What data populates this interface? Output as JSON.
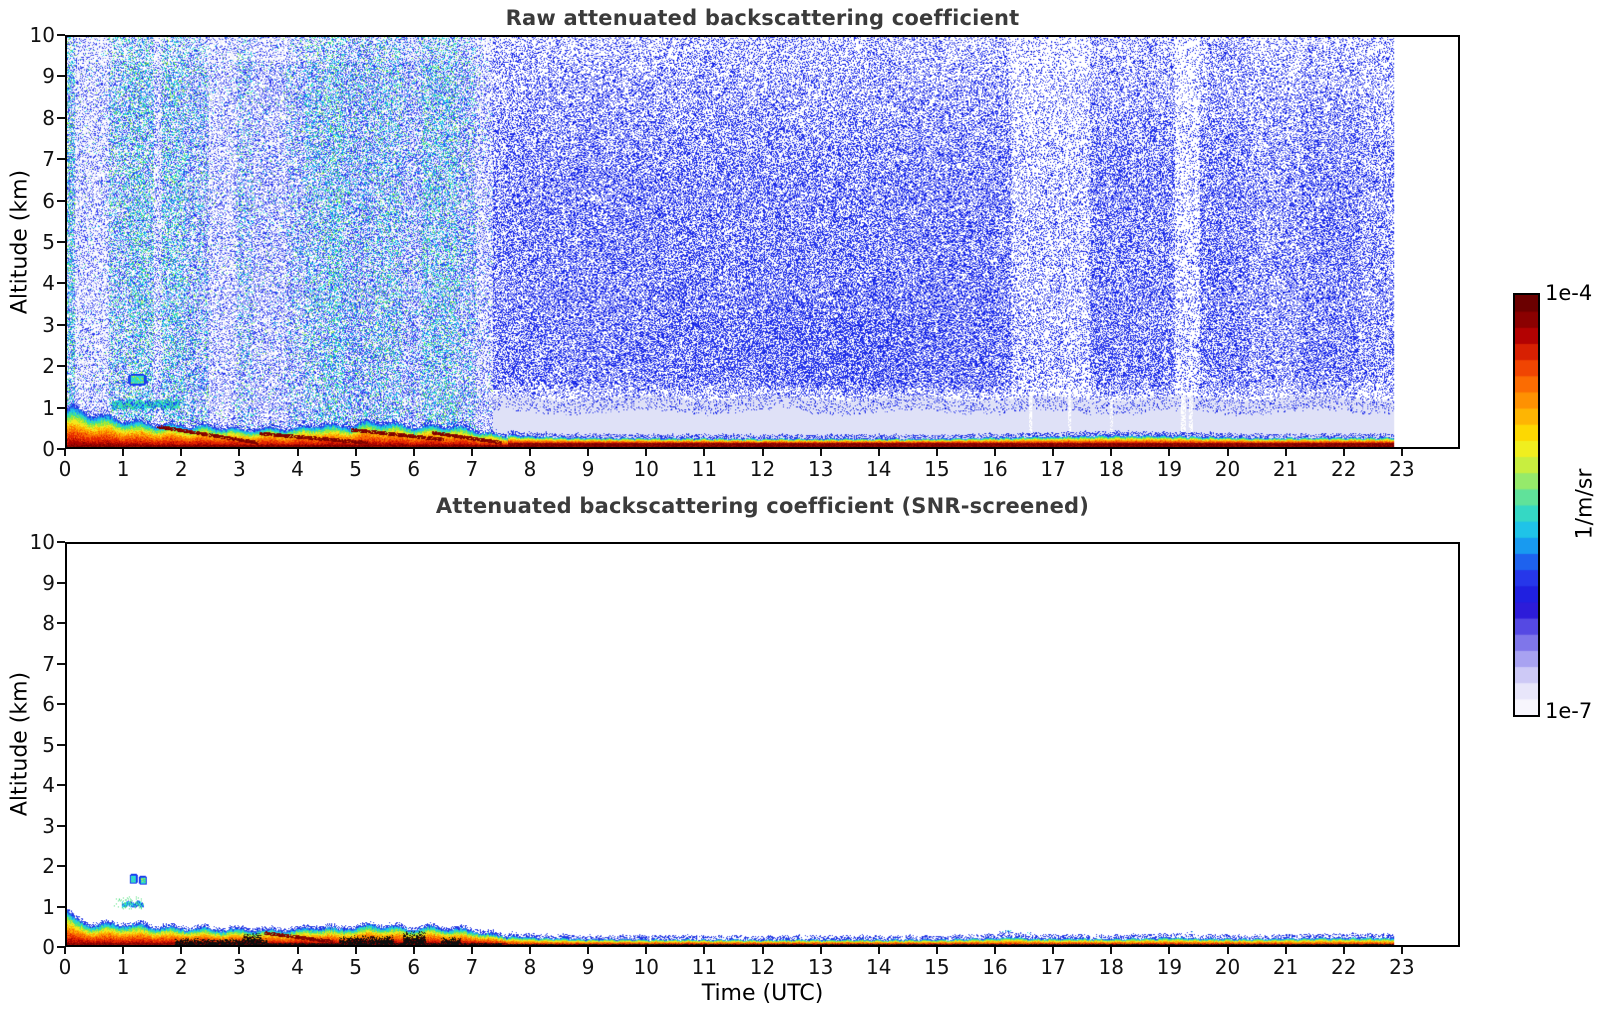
{
  "page": {
    "background": "#ffffff"
  },
  "titles": {
    "top_panel": "Raw attenuated backscattering coefficient",
    "bottom_panel": "Attenuated backscattering coefficient (SNR-screened)"
  },
  "axis": {
    "x_label": "Time (UTC)",
    "y_label": "Altitude (km)",
    "x_ticks": [
      0,
      1,
      2,
      3,
      4,
      5,
      6,
      7,
      8,
      9,
      10,
      11,
      12,
      13,
      14,
      15,
      16,
      17,
      18,
      19,
      20,
      21,
      22,
      23
    ],
    "y_ticks": [
      0,
      1,
      2,
      3,
      4,
      5,
      6,
      7,
      8,
      9,
      10
    ],
    "x_range": [
      0,
      24
    ],
    "y_range": [
      0,
      10
    ],
    "grid": false
  },
  "colorbar": {
    "label_top": "1e-4",
    "label_bottom": "1e-7",
    "unit_label": "1/m/sr",
    "stops_bottom_to_top": [
      "#f7f6fd",
      "#e8e6fa",
      "#cdc9f6",
      "#a8a2f1",
      "#7f76ea",
      "#5549e3",
      "#2d1cd9",
      "#2020e0",
      "#2637ea",
      "#1e62ee",
      "#189af0",
      "#1fc3e8",
      "#35d8c4",
      "#60e29a",
      "#95ea6b",
      "#c8ee3f",
      "#f0ee1f",
      "#fdd802",
      "#feb503",
      "#fe9102",
      "#fb6c02",
      "#f04502",
      "#d72002",
      "#b30202",
      "#8b0101",
      "#6b0000"
    ]
  },
  "render_palettes": {
    "morning_blue": [
      [
        "#2a38ee",
        5
      ],
      [
        "#5560f0",
        2
      ],
      [
        "#8b93f4",
        2
      ],
      [
        "#b9bdf8",
        1
      ]
    ],
    "morning_cyan": [
      [
        "#21d2e6",
        5
      ],
      [
        "#43e283",
        2
      ],
      [
        "#8ef03a",
        1.5
      ],
      [
        "#17b5ee",
        1.5
      ]
    ],
    "afternoon_blue": [
      [
        "#1d2ceb",
        6
      ],
      [
        "#3a49ee",
        2
      ],
      [
        "#0d1bd6",
        1.2
      ],
      [
        "#7b84f2",
        0.8
      ]
    ],
    "morning_bg": "#eceefb",
    "lavender": "#dfe1f7",
    "bl_palette": [
      [
        0,
        "#7c0000"
      ],
      [
        0.1,
        "#ad0400"
      ],
      [
        0.22,
        "#e42600"
      ],
      [
        0.38,
        "#f86a00"
      ],
      [
        0.52,
        "#fdaf00"
      ],
      [
        0.62,
        "#f3e71c"
      ],
      [
        0.72,
        "#9dea38"
      ],
      [
        0.8,
        "#3fdf95"
      ],
      [
        0.87,
        "#22cfe0"
      ],
      [
        0.93,
        "#1e8cee"
      ],
      [
        1,
        "#2337e6"
      ]
    ],
    "cloud": {
      "core": "#2bd7e2",
      "green": "#4ce07c",
      "rim": "#1c40ee",
      "yellow": "#d8ee2a"
    },
    "black": "#0d0d0d",
    "ground_dark": "#7c0000",
    "ground_dark2": "#9a0e00"
  },
  "chart_data": [
    {
      "type": "heatmap",
      "panel": "top",
      "title": "Raw attenuated backscattering coefficient",
      "xlabel": "Time (UTC)",
      "ylabel": "Altitude (km)",
      "x_range_hours": [
        0,
        24
      ],
      "y_range_km": [
        0,
        10
      ],
      "data_end_hour": 22.9,
      "value_scale": {
        "min": "1e-7",
        "max": "1e-4",
        "units": "1/m/sr"
      },
      "seed": 7,
      "lavender_layer": {
        "t0": 6.7,
        "t1": 22.9,
        "top_km": 1.2
      },
      "white_streaks": [
        [
          19.22,
          19.3
        ],
        [
          19.36,
          19.42
        ],
        [
          16.6,
          16.65
        ],
        [
          17.28,
          17.33
        ],
        [
          18.0,
          18.04
        ]
      ],
      "morning_noise": {
        "t0": 0,
        "t1": 7.35,
        "stripes": [
          [
            0,
            0.14,
            0.62,
            0.5
          ],
          [
            0.14,
            0.72,
            0.3,
            0.08
          ],
          [
            0.72,
            1.06,
            0.52,
            0.38
          ],
          [
            1.06,
            1.5,
            0.58,
            0.5
          ],
          [
            1.5,
            1.64,
            0.35,
            0.12
          ],
          [
            1.64,
            2.05,
            0.57,
            0.48
          ],
          [
            2.05,
            2.45,
            0.52,
            0.3
          ],
          [
            2.45,
            2.92,
            0.32,
            0.08
          ],
          [
            2.92,
            3.2,
            0.48,
            0.28
          ],
          [
            3.2,
            3.78,
            0.38,
            0.1
          ],
          [
            3.78,
            4.12,
            0.48,
            0.22
          ],
          [
            4.12,
            4.5,
            0.55,
            0.4
          ],
          [
            4.5,
            4.78,
            0.6,
            0.5
          ],
          [
            4.78,
            5.32,
            0.58,
            0.3
          ],
          [
            5.32,
            5.78,
            0.55,
            0.42
          ],
          [
            5.78,
            6.12,
            0.5,
            0.2
          ],
          [
            6.12,
            6.72,
            0.58,
            0.45
          ],
          [
            6.72,
            7.05,
            0.52,
            0.28
          ],
          [
            7.05,
            7.35,
            0.34,
            0.08
          ]
        ]
      },
      "afternoon_noise": {
        "t0": 7.35,
        "t1": 22.9,
        "base_density": 0.5,
        "light_bands": [
          [
            16.3,
            17.65,
            0.55
          ],
          [
            19.12,
            19.55,
            0.45
          ],
          [
            20.4,
            21.3,
            0.82
          ],
          [
            22.3,
            22.9,
            0.78
          ]
        ]
      },
      "boundary_layer": {
        "t_end": 7.6,
        "heights": [
          [
            0,
            0.95
          ],
          [
            0.3,
            0.85
          ],
          [
            0.8,
            0.7
          ],
          [
            1.2,
            0.6
          ],
          [
            1.6,
            0.55
          ],
          [
            2,
            0.52
          ],
          [
            2.5,
            0.5
          ],
          [
            3,
            0.42
          ],
          [
            3.5,
            0.45
          ],
          [
            4,
            0.45
          ],
          [
            4.3,
            0.55
          ],
          [
            4.7,
            0.5
          ],
          [
            5,
            0.55
          ],
          [
            5.3,
            0.62
          ],
          [
            5.7,
            0.55
          ],
          [
            6,
            0.48
          ],
          [
            6.3,
            0.52
          ],
          [
            6.7,
            0.5
          ],
          [
            7,
            0.42
          ],
          [
            7.4,
            0.3
          ],
          [
            7.6,
            0.25
          ]
        ]
      },
      "dark_streaks": [
        [
          1.55,
          0.5,
          3.3,
          0.1
        ],
        [
          3.3,
          0.33,
          5.2,
          0.1
        ],
        [
          4.9,
          0.42,
          6.5,
          0.18
        ],
        [
          6.3,
          0.35,
          7.5,
          0.1
        ]
      ],
      "clouds": [
        {
          "t0": 1.05,
          "t1": 1.38,
          "km0": 1.5,
          "km1": 1.78,
          "kind": "blob"
        },
        {
          "t0": 0.78,
          "t1": 1.95,
          "km0": 0.9,
          "km1": 1.16,
          "kind": "layer"
        }
      ],
      "surface_layer": {
        "t0": 7.6,
        "t1": 22.9,
        "base_km": 0.1,
        "f0": 0.22,
        "ground": "darkred",
        "top_km": [
          [
            7.6,
            0.3
          ],
          [
            8,
            0.26
          ],
          [
            9,
            0.22
          ],
          [
            12,
            0.2
          ],
          [
            15,
            0.2
          ],
          [
            16.5,
            0.24
          ],
          [
            17.5,
            0.27
          ],
          [
            18.3,
            0.28
          ],
          [
            19,
            0.27
          ],
          [
            19.6,
            0.25
          ],
          [
            20.5,
            0.22
          ],
          [
            21.5,
            0.22
          ],
          [
            22.9,
            0.23
          ]
        ]
      }
    },
    {
      "type": "heatmap",
      "panel": "bottom",
      "title": "Attenuated backscattering coefficient (SNR-screened)",
      "xlabel": "Time (UTC)",
      "ylabel": "Altitude (km)",
      "x_range_hours": [
        0,
        24
      ],
      "y_range_km": [
        0,
        10
      ],
      "data_end_hour": 22.9,
      "value_scale": {
        "min": "1e-7",
        "max": "1e-4",
        "units": "1/m/sr"
      },
      "seed": 13,
      "boundary_layer": {
        "t_end": 7.6,
        "heights": [
          [
            0,
            0.88
          ],
          [
            0.15,
            0.6
          ],
          [
            0.5,
            0.5
          ],
          [
            1,
            0.52
          ],
          [
            1.5,
            0.45
          ],
          [
            2,
            0.42
          ],
          [
            2.5,
            0.4
          ],
          [
            3,
            0.38
          ],
          [
            3.5,
            0.36
          ],
          [
            4,
            0.38
          ],
          [
            4.3,
            0.45
          ],
          [
            4.7,
            0.4
          ],
          [
            5,
            0.45
          ],
          [
            5.3,
            0.5
          ],
          [
            5.7,
            0.45
          ],
          [
            6,
            0.4
          ],
          [
            6.3,
            0.45
          ],
          [
            6.7,
            0.4
          ],
          [
            7,
            0.35
          ],
          [
            7.4,
            0.25
          ],
          [
            7.6,
            0.18
          ]
        ]
      },
      "black_patches": [
        [
          1.85,
          3.45,
          0.14
        ],
        [
          3.05,
          3.35,
          0.26
        ],
        [
          4.7,
          5.65,
          0.2
        ],
        [
          5.8,
          6.2,
          0.3
        ],
        [
          6.45,
          6.8,
          0.18
        ],
        [
          2.0,
          7.5,
          0.05
        ]
      ],
      "dark_streaks": [
        [
          3.4,
          0.3,
          4.6,
          0.08
        ]
      ],
      "clouds": [
        {
          "t0": 1.08,
          "t1": 1.22,
          "km0": 1.52,
          "km1": 1.78,
          "kind": "blob"
        },
        {
          "t0": 1.24,
          "t1": 1.38,
          "km0": 1.5,
          "km1": 1.73,
          "kind": "blob"
        },
        {
          "t0": 0.95,
          "t1": 1.32,
          "km0": 0.93,
          "km1": 1.1,
          "kind": "layer"
        },
        {
          "t0": 0.8,
          "t1": 1.3,
          "km0": 0.88,
          "km1": 1.2,
          "kind": "speckle"
        }
      ],
      "surface_layer": {
        "t0": 7.6,
        "t1": 22.9,
        "base_km": 0.035,
        "f0": 0.3,
        "ground": "black",
        "top_km": [
          [
            7.6,
            0.22
          ],
          [
            8,
            0.18
          ],
          [
            9,
            0.14
          ],
          [
            12,
            0.13
          ],
          [
            15,
            0.13
          ],
          [
            16,
            0.16
          ],
          [
            16.3,
            0.2
          ],
          [
            16.6,
            0.16
          ],
          [
            17,
            0.16
          ],
          [
            18,
            0.15
          ],
          [
            19.2,
            0.18
          ],
          [
            19.5,
            0.16
          ],
          [
            20.5,
            0.15
          ],
          [
            21.5,
            0.17
          ],
          [
            22.4,
            0.18
          ],
          [
            22.9,
            0.17
          ]
        ]
      },
      "specks": [
        [
          16.2,
          0.3,
          0.12,
          0.06
        ],
        [
          19.35,
          0.3,
          0.1,
          0.05
        ],
        [
          16.6,
          0.27,
          0.06,
          0.04
        ]
      ]
    }
  ]
}
